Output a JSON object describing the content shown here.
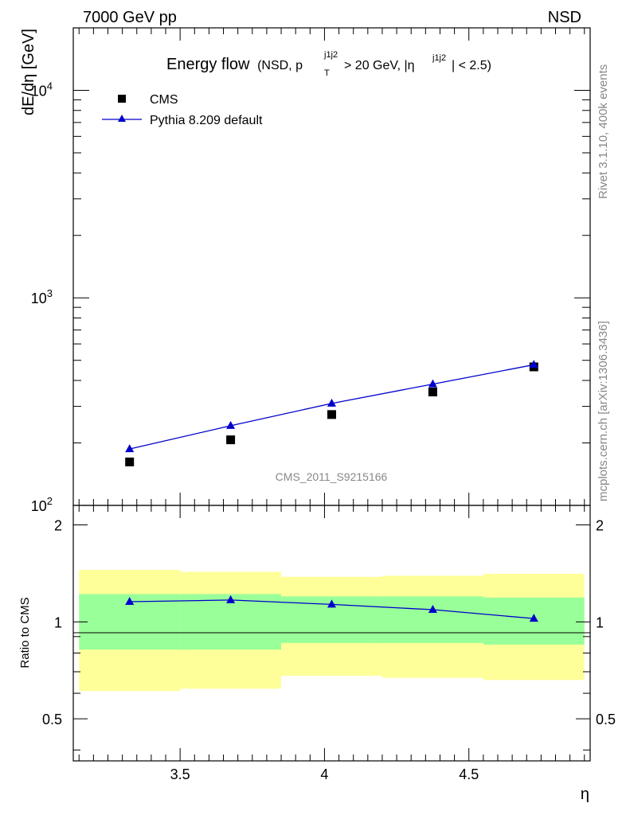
{
  "header": {
    "left": "7000 GeV pp",
    "right": "NSD",
    "title_main": "Energy flow",
    "title_cond": "(NSD, p",
    "title_sub_T": "T",
    "title_sup1": "j1j2",
    "title_mid": " > 20 GeV, |η",
    "title_sup2": "j1j2",
    "title_end": "| < 2.5)"
  },
  "side": {
    "rivet": "Rivet 3.1.10,  400k events",
    "mcplots": "mcplots.cern.ch [arXiv:1306.3436]"
  },
  "watermark": "CMS_2011_S9215166",
  "chart_data": [
    {
      "type": "scatter",
      "ylabel": "dE/dη [GeV]",
      "yscale": "log",
      "ylim": [
        100,
        20000
      ],
      "xlim": [
        3.13,
        4.92
      ],
      "y_ticks": [
        {
          "base": "10",
          "exp": "2",
          "value": 100
        },
        {
          "base": "10",
          "exp": "3",
          "value": 1000
        },
        {
          "base": "10",
          "exp": "4",
          "value": 10000
        }
      ],
      "legend": [
        {
          "name": "CMS",
          "marker": "square"
        },
        {
          "name": "Pythia 8.209 default",
          "marker": "triangle"
        }
      ],
      "x": [
        3.325,
        3.675,
        4.025,
        4.375,
        4.725
      ],
      "bin_edges": [
        3.15,
        3.5,
        3.85,
        4.2,
        4.55,
        4.9
      ],
      "series": [
        {
          "name": "CMS",
          "values": [
            162,
            207,
            274,
            352,
            465
          ],
          "color": "#000000"
        },
        {
          "name": "Pythia 8.209 default",
          "values": [
            187,
            242,
            310,
            384,
            476
          ],
          "color": "#0000cc"
        }
      ]
    },
    {
      "type": "line",
      "ylabel": "Ratio to CMS",
      "ylim": [
        0.37,
        2.3
      ],
      "xlabel": "η",
      "x_ticks": [
        "3.5",
        "4",
        "4.5"
      ],
      "x_tick_values": [
        3.5,
        4.0,
        4.5
      ],
      "y_ticks": [
        "0.5",
        "1",
        "2"
      ],
      "y_tick_values": [
        0.5,
        1,
        2
      ],
      "series": [
        {
          "name": "Pythia 8.209 default",
          "values": [
            1.155,
            1.169,
            1.133,
            1.091,
            1.024
          ],
          "color": "#0000cc"
        }
      ],
      "bands": {
        "green": [
          [
            0.82,
            1.22
          ],
          [
            0.82,
            1.22
          ],
          [
            0.86,
            1.2
          ],
          [
            0.86,
            1.2
          ],
          [
            0.85,
            1.19
          ]
        ],
        "yellow": [
          [
            0.61,
            1.45
          ],
          [
            0.62,
            1.43
          ],
          [
            0.68,
            1.38
          ],
          [
            0.67,
            1.39
          ],
          [
            0.66,
            1.41
          ]
        ],
        "green_color": "#99ff99",
        "yellow_color": "#ffff99"
      }
    }
  ]
}
